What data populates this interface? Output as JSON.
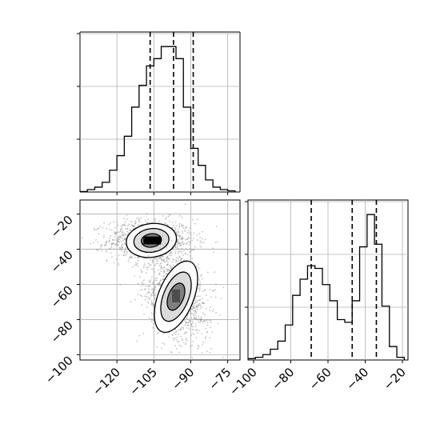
{
  "colors": {
    "line": "#000000",
    "grid": "#b0b0b0",
    "scatter": "#7f7f7f",
    "fill_dark": "#000000"
  },
  "chart_data": [
    {
      "id": "hist-p1",
      "type": "histogram",
      "position": "top-left",
      "xlim": [
        -135,
        -70
      ],
      "grid": true,
      "x_ticks": [
        -120,
        -105,
        -90,
        -75
      ],
      "quantile_lines": [
        -106.5,
        -97.0,
        -89.0
      ],
      "bins": {
        "edges": [
          -135,
          -132,
          -129,
          -126,
          -123,
          -120,
          -117,
          -114,
          -111,
          -108,
          -105,
          -102,
          -99,
          -96,
          -93,
          -90,
          -87,
          -84,
          -81,
          -78,
          -75,
          -72
        ],
        "counts": [
          0.2,
          1,
          2,
          4,
          9,
          15,
          23,
          35,
          44,
          52,
          55,
          60,
          60,
          55,
          35,
          18,
          11,
          5,
          2,
          1,
          0.5
        ]
      }
    },
    {
      "id": "scatter-p1-p2",
      "type": "scatter",
      "position": "bottom-left",
      "xlim": [
        -135,
        -70
      ],
      "ylim": [
        -103,
        -12
      ],
      "grid": true,
      "x_ticks": [
        -120,
        -105,
        -90,
        -75
      ],
      "x_tick_labels": [
        "−120",
        "−105",
        "−90",
        "−75"
      ],
      "y_ticks": [
        -20,
        -40,
        -60,
        -80,
        -100
      ],
      "y_tick_labels": [
        "−20",
        "−40",
        "−60",
        "−80",
        "−100"
      ],
      "clusters": [
        {
          "center_x": -106,
          "center_y": -35,
          "spread_x": 9,
          "spread_y": 6,
          "contour_rx": [
            30,
            21,
            12
          ],
          "contour_ry": [
            20,
            14,
            8
          ]
        },
        {
          "center_x": -96,
          "center_y": -67,
          "spread_x": 7,
          "spread_y": 12,
          "contour_rx": [
            21,
            15,
            9
          ],
          "contour_ry": [
            45,
            31,
            17
          ]
        }
      ]
    },
    {
      "id": "hist-p2",
      "type": "histogram",
      "position": "bottom-right",
      "xlim": [
        -103,
        -17
      ],
      "grid": true,
      "x_ticks": [
        -100,
        -80,
        -60,
        -40,
        -20
      ],
      "x_tick_labels": [
        "−100",
        "−80",
        "−60",
        "−40",
        "−20"
      ],
      "quantile_lines": [
        -69,
        -47,
        -34
      ],
      "bins": {
        "edges": [
          -103,
          -99,
          -95,
          -91,
          -87,
          -83,
          -79,
          -75,
          -71,
          -67,
          -63,
          -59,
          -55,
          -51,
          -47,
          -43,
          -39,
          -35,
          -31,
          -27,
          -23,
          -19
        ],
        "counts": [
          0.5,
          1,
          2,
          4,
          7,
          13,
          24,
          30,
          35,
          34,
          28,
          22,
          15,
          14,
          22,
          42,
          54,
          43,
          20,
          5,
          1
        ]
      }
    }
  ]
}
